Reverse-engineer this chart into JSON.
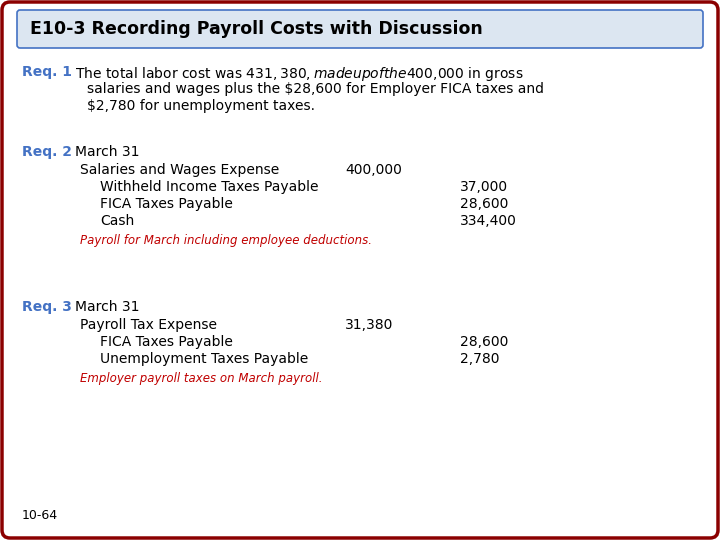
{
  "title": "E10-3 Recording Payroll Costs with Discussion",
  "bg_color": "#ffffff",
  "outer_border_color": "#8B0000",
  "title_bg_color": "#dce6f1",
  "title_border_color": "#4472c4",
  "title_text_color": "#000000",
  "req_label_color": "#4472c4",
  "red_note_color": "#c00000",
  "body_text_color": "#000000",
  "page_num": "10-64",
  "req1_label": "Req. 1",
  "req1_text_line1": "The total labor cost was $431,380, made up of the $400,000 in gross",
  "req1_text_line2": "salaries and wages plus the $28,600 for Employer FICA taxes and",
  "req1_text_line3": "$2,780 for unemployment taxes.",
  "req2_label": "Req. 2",
  "req2_date": "March 31",
  "req2_entries": [
    {
      "account": "Salaries and Wages Expense",
      "indent": 0,
      "debit": "400,000",
      "credit": ""
    },
    {
      "account": "Withheld Income Taxes Payable",
      "indent": 1,
      "debit": "",
      "credit": "37,000"
    },
    {
      "account": "FICA Taxes Payable",
      "indent": 1,
      "debit": "",
      "credit": "28,600"
    },
    {
      "account": "Cash",
      "indent": 1,
      "debit": "",
      "credit": "334,400"
    }
  ],
  "req2_note": "Payroll for March including employee deductions.",
  "req3_label": "Req. 3",
  "req3_date": "March 31",
  "req3_entries": [
    {
      "account": "Payroll Tax Expense",
      "indent": 0,
      "debit": "31,380",
      "credit": ""
    },
    {
      "account": "FICA Taxes Payable",
      "indent": 1,
      "debit": "",
      "credit": "28,600"
    },
    {
      "account": "Unemployment Taxes Payable",
      "indent": 1,
      "debit": "",
      "credit": "2,780"
    }
  ],
  "req3_note": "Employer payroll taxes on March payroll."
}
